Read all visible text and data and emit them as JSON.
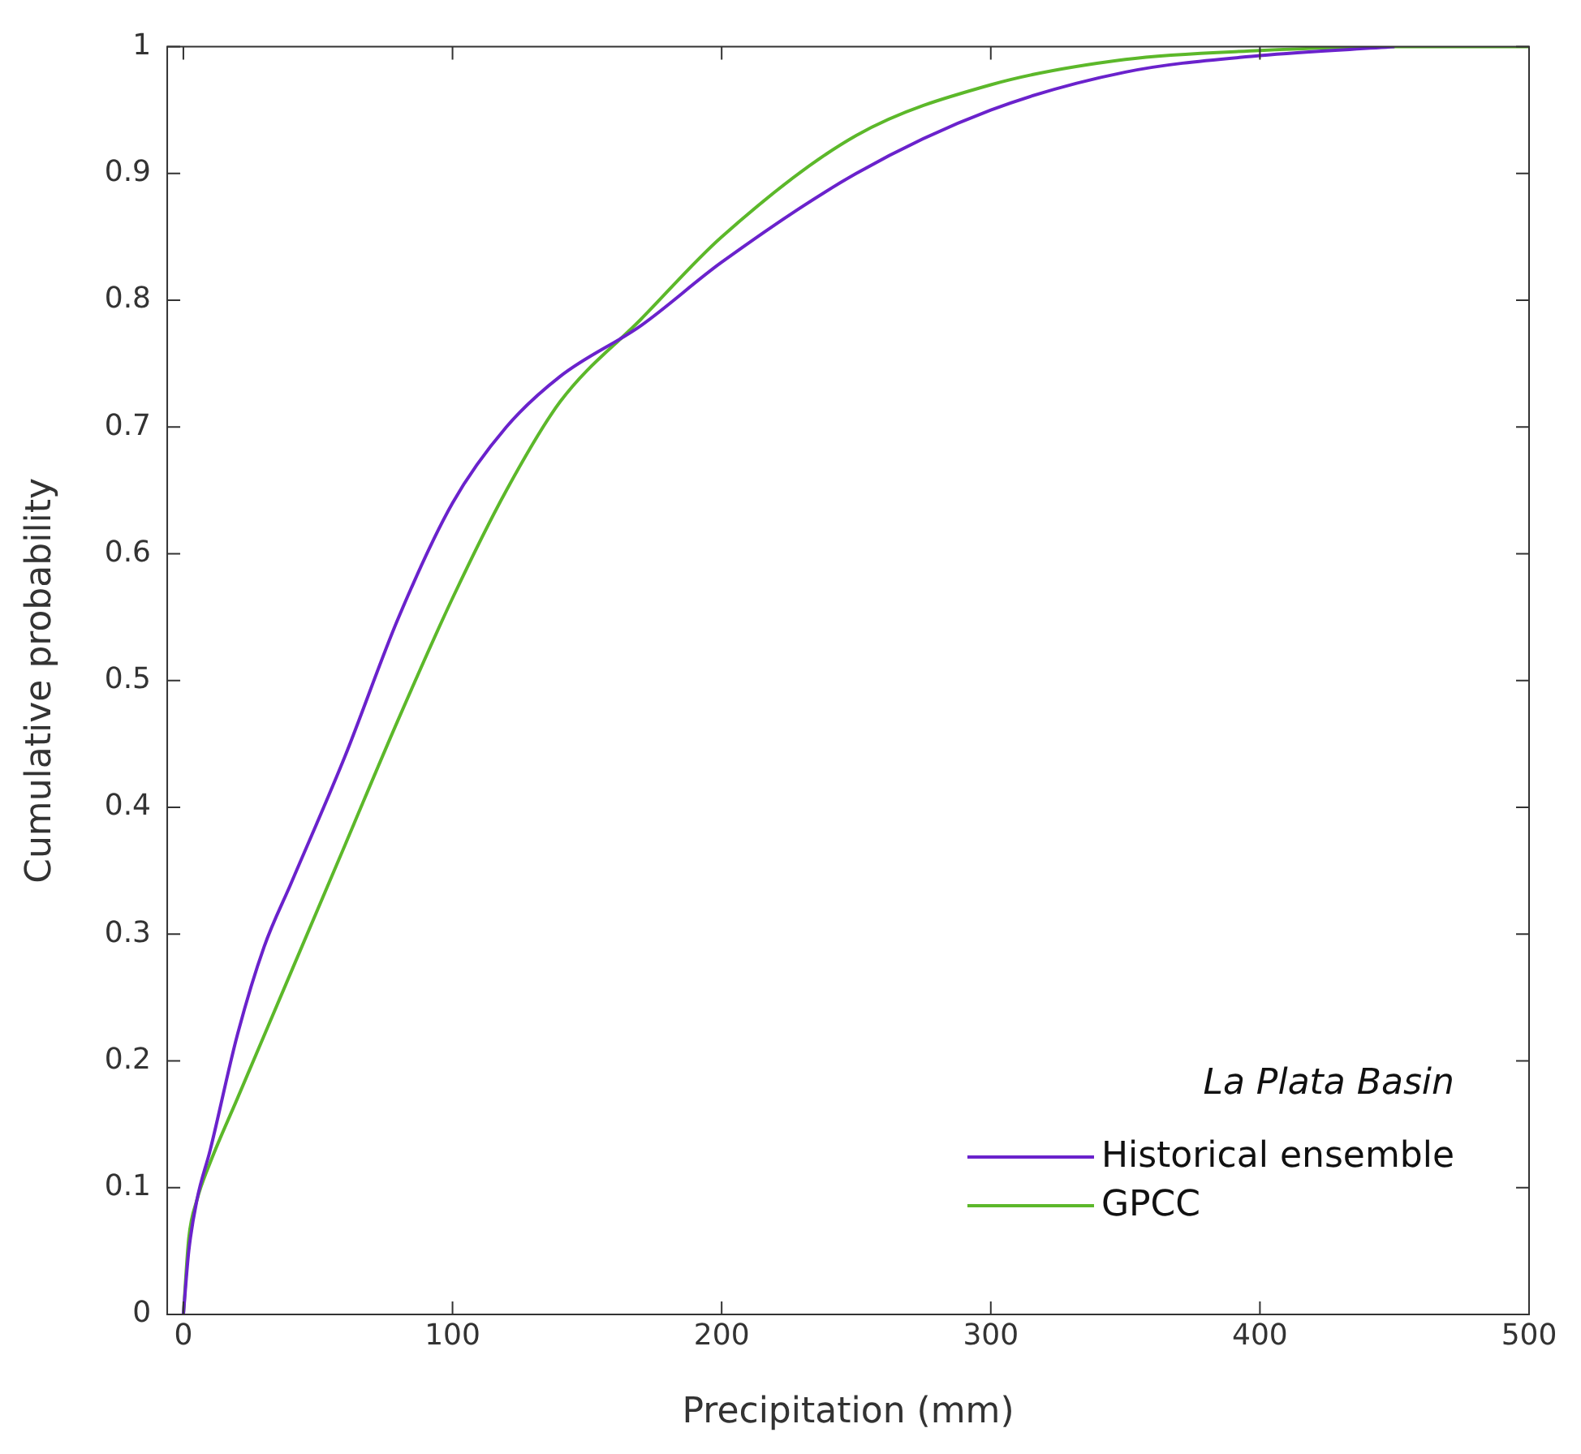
{
  "chart_data": {
    "type": "line",
    "xlabel": "Precipitation (mm)",
    "ylabel": "Cumulative probability",
    "annotations": [
      "La Plata Basin"
    ],
    "xlim": [
      -6,
      500
    ],
    "xticks": [
      0,
      100,
      200,
      300,
      400,
      500
    ],
    "ylim": [
      0,
      1
    ],
    "yticks": [
      0,
      0.1,
      0.2,
      0.3,
      0.4,
      0.5,
      0.6,
      0.7,
      0.8,
      0.9,
      1
    ],
    "grid": false,
    "legend": "bottom right",
    "marker": "none",
    "line_style": "solid",
    "series": [
      {
        "name": "Historical ensemble",
        "color": "#6a22cc",
        "x": [
          0,
          2,
          5,
          10,
          20,
          30,
          40,
          60,
          80,
          100,
          120,
          140,
          170,
          200,
          250,
          300,
          350,
          400,
          450
        ],
        "values": [
          0,
          0.05,
          0.09,
          0.13,
          0.22,
          0.29,
          0.34,
          0.44,
          0.55,
          0.64,
          0.7,
          0.74,
          0.78,
          0.83,
          0.9,
          0.95,
          0.98,
          0.993,
          1
        ]
      },
      {
        "name": "GPCC",
        "color": "#5cb82a",
        "x": [
          0,
          2,
          5,
          10,
          20,
          40,
          60,
          80,
          100,
          120,
          140,
          170,
          200,
          250,
          300,
          350,
          400,
          450,
          500
        ],
        "values": [
          0,
          0.06,
          0.09,
          0.12,
          0.17,
          0.27,
          0.37,
          0.47,
          0.565,
          0.65,
          0.72,
          0.785,
          0.85,
          0.93,
          0.97,
          0.99,
          0.997,
          1,
          1
        ]
      }
    ]
  }
}
